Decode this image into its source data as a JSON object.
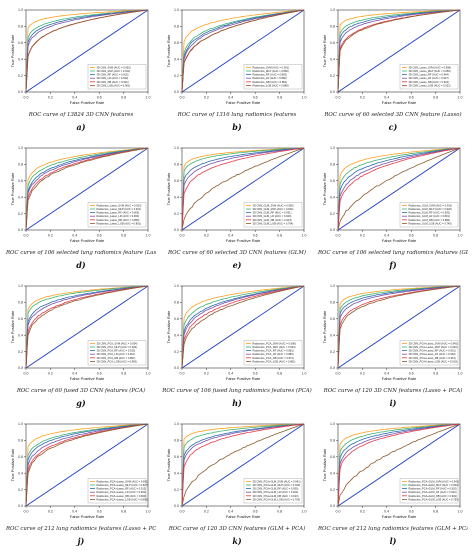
{
  "axis_labels": {
    "x": "False Positive Rate",
    "y": "True Positive Rate"
  },
  "panels": [
    {
      "letter": "a)",
      "caption": "ROC curve of 13824 3D CNN features",
      "legend": [
        "3D CNN_SVM (AUC = 0.953)",
        "3D CNN_MLP (AUC = 0.912)",
        "3D CNN_RF (AUC = 0.915)",
        "3D CNN_LR (AUC = 0.942)",
        "3D CNN_DB (AUC = 0.901)",
        "3D CNN_LGB (AUC = 0.901)"
      ]
    },
    {
      "letter": "b)",
      "caption": "ROC curve of 1316 lung radiomics features",
      "legend": [
        "Radiomics_SVM (AUC = 0.901)",
        "Radiomics_MLP (AUC = 0.882)",
        "Radiomics_RF (AUC = 0.883)",
        "Radiomics_LR (AUC = 0.882)",
        "Radiomics_DB (AUC = 0.881)",
        "Radiomics_LGB (AUC = 0.880)"
      ]
    },
    {
      "letter": "c)",
      "caption": "ROC curve of 60 selected 3D CNN feature (Lasso)",
      "legend": [
        "3D CNN_Lasso_SVM (AUC = 0.958)",
        "3D CNN_Lasso_MLP (AUC = 0.956)",
        "3D CNN_Lasso_RF (AUC = 0.944)",
        "3D CNN_Lasso_LR (AUC = 0.937)",
        "3D CNN_Lasso_DB (AUC = 0.924)",
        "3D CNN_Lasso_LGB (AUC = 0.922)"
      ]
    },
    {
      "letter": "d)",
      "caption": "ROC curve of 106 selected lung radiomics feature (Lasso)",
      "legend": [
        "Radiomics_Lasso_SVM (AUC = 0.923)",
        "Radiomics_Lasso_MLP (AUC = 0.921)",
        "Radiomics_Lasso_RF (AUC = 0.905)",
        "Radiomics_Lasso_LR (AUC = 0.900)",
        "Radiomics_Lasso_DB (AUC = 0.895)",
        "Radiomics_Lasso_LGB (AUC = 0.891)"
      ]
    },
    {
      "letter": "e)",
      "caption": "ROC curve of 60 selected 3D CNN features (GLM)",
      "legend": [
        "3D CNN_GLM_SVM (AUC = 0.950)",
        "3D CNN_GLM_MLP (AUC = 0.944)",
        "3D CNN_GLM_RF (AUC = 0.931)",
        "3D CNN_GLM_LR (AUC = 0.920)",
        "3D CNN_GLM_DB (AUC = 0.913)",
        "3D CNN_GLM_LGB (AUC = 0.764)"
      ]
    },
    {
      "letter": "f)",
      "caption": "ROC curve of 106 selected lung radiomics features (GLM)",
      "legend": [
        "Radiomics_GLM_SVM (AUC = 0.931)",
        "Radiomics_GLM_MLP (AUC = 0.920)",
        "Radiomics_GLM_RF (AUC = 0.905)",
        "Radiomics_GLM_LR (AUC = 0.891)",
        "Radiomics_GLM_DB (AUC = 0.884)",
        "Radiomics_GLM_LGB (AUC = 0.745)"
      ]
    },
    {
      "letter": "g)",
      "caption": "ROC curve of 60 fused 3D CNN features (PCA)",
      "legend": [
        "3D CNN_PCA_SVM (AUC = 0.934)",
        "3D CNN_PCA_MLP (AUC = 0.932)",
        "3D CNN_PCA_RF (AUC = 0.913)",
        "3D CNN_PCA_LR (AUC = 0.911)",
        "3D CNN_PCA_DB (AUC = 0.897)",
        "3D CNN_PCA_LGB (AUC = 0.893)"
      ]
    },
    {
      "letter": "h)",
      "caption": "ROC curve of 106 fused lung radiomics  features (PCA)",
      "legend": [
        "Radiomics_PCA_SVM (AUC = 0.908)",
        "Radiomics_PCA_MLP (AUC = 0.904)",
        "Radiomics_PCA_RF (AUC = 0.881)",
        "Radiomics_PCA_LR (AUC = 0.880)",
        "Radiomics_PCA_DB (AUC = 0.872)",
        "Radiomics_PCA_LGB (AUC = 0.861)"
      ]
    },
    {
      "letter": "i)",
      "caption": "ROC curve of 120 3D CNN features (Lasso + PCA)",
      "legend": [
        "3D CNN_PCA+Lasso_SVM (AUC = 0.945)",
        "3D CNN_PCA+Lasso_MLP (AUC = 0.943)",
        "3D CNN_PCA+Lasso_RF (AUC = 0.931)",
        "3D CNN_PCA+Lasso_LR (AUC = 0.930)",
        "3D CNN_PCA+Lasso_DB (AUC = 0.912)",
        "3D CNN_PCA+Lasso_LGB (AUC = 0.910)"
      ]
    },
    {
      "letter": "j)",
      "caption": "ROC curve of 212 lung radiomics features (Lasso + PCA)",
      "legend": [
        "Radiomics_PCA+Lasso_SVM (AUC = 0.931)",
        "Radiomics_PCA+Lasso_MLP (AUC = 0.927)",
        "Radiomics_PCA+Lasso_RF (AUC = 0.912)",
        "Radiomics_PCA+Lasso_LR (AUC = 0.903)",
        "Radiomics_PCA+Lasso_DB (AUC = 0.900)",
        "Radiomics_PCA+Lasso_LGB (AUC = 0.895)"
      ]
    },
    {
      "letter": "k)",
      "caption": "ROC curve of 120 3D CNN features (GLM + PCA)",
      "legend": [
        "3D CNN_PCA+GLM_SVM (AUC = 0.961)",
        "3D CNN_PCA+GLM_MLP (AUC = 0.943)",
        "3D CNN_PCA+GLM_RF (AUC = 0.930)",
        "3D CNN_PCA+GLM_LR (AUC = 0.923)",
        "3D CNN_PCA+GLM_DB (AUC = 0.913)",
        "3D CNN_PCA+GLM_LGB (AUC = 0.760)"
      ]
    },
    {
      "letter": "l)",
      "caption": "ROC curve of 212 lung radiomics features (GLM + PCA)",
      "legend": [
        "Radiomics_PCA+GLM_SVM (AUC = 0.941)",
        "Radiomics_PCA+GLM_MLP (AUC = 0.933)",
        "Radiomics_PCA+GLM_RF (AUC = 0.920)",
        "Radiomics_PCA+GLM_LR (AUC = 0.910)",
        "Radiomics_PCA+GLM_DB (AUC = 0.902)",
        "Radiomics_PCA+GLM_LGB (AUC = 0.750)"
      ]
    }
  ],
  "chart_data": {
    "type": "line",
    "panel_count": 12,
    "xlabel": "False Positive Rate",
    "ylabel": "True Positive Rate",
    "xlim": [
      0,
      1
    ],
    "ylim": [
      0,
      1
    ],
    "x_ticks": [
      0.0,
      0.2,
      0.4,
      0.6,
      0.8,
      1.0
    ],
    "y_ticks": [
      0.0,
      0.2,
      0.4,
      0.6,
      0.8,
      1.0
    ],
    "legend_position": "lower-right",
    "series_colors": [
      "#ff9f1c",
      "#3bb273",
      "#2b6cb0",
      "#7b4fa8",
      "#e63946",
      "#8b5a2b"
    ],
    "chance_line_color": "#1f3fbf",
    "curve_exponents": [
      [
        0.06,
        0.1,
        0.12,
        0.14,
        0.2,
        0.2
      ],
      [
        0.12,
        0.18,
        0.2,
        0.22,
        0.26,
        0.26
      ],
      [
        0.05,
        0.08,
        0.1,
        0.12,
        0.16,
        0.17
      ],
      [
        0.12,
        0.15,
        0.18,
        0.2,
        0.23,
        0.25
      ],
      [
        0.06,
        0.08,
        0.12,
        0.15,
        0.2,
        0.5
      ],
      [
        0.1,
        0.14,
        0.18,
        0.22,
        0.26,
        0.55
      ],
      [
        0.08,
        0.1,
        0.14,
        0.16,
        0.2,
        0.22
      ],
      [
        0.12,
        0.16,
        0.2,
        0.22,
        0.26,
        0.3
      ],
      [
        0.06,
        0.08,
        0.1,
        0.12,
        0.16,
        0.18
      ],
      [
        0.08,
        0.12,
        0.14,
        0.17,
        0.2,
        0.22
      ],
      [
        0.05,
        0.08,
        0.12,
        0.14,
        0.18,
        0.5
      ],
      [
        0.07,
        0.1,
        0.13,
        0.16,
        0.19,
        0.52
      ]
    ]
  }
}
